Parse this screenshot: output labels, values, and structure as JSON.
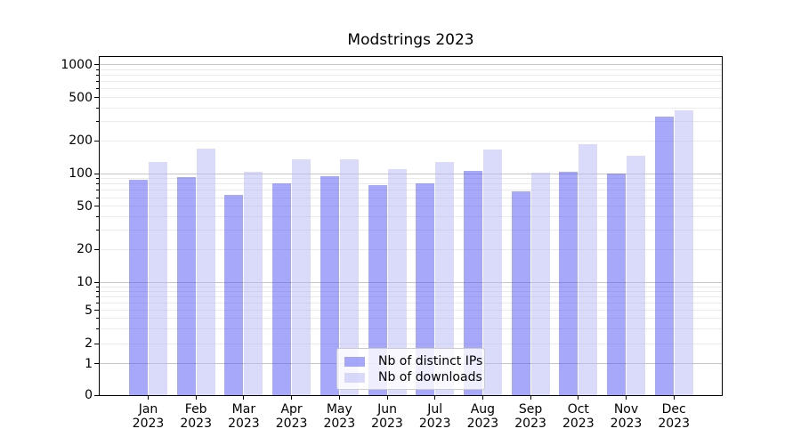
{
  "chart": {
    "background": "#ffffff",
    "spine_color": "#000000",
    "major_grid_color": "#c6c6c6",
    "minor_grid_color": "#ebebeb",
    "legend": {
      "background": "rgba(255,255,255,0.8)",
      "border_color": "#cccccc"
    }
  },
  "chart_data": {
    "type": "bar",
    "title": "Modstrings 2023",
    "categories": [
      "Jan 2023",
      "Feb 2023",
      "Mar 2023",
      "Apr 2023",
      "May 2023",
      "Jun 2023",
      "Jul 2023",
      "Aug 2023",
      "Sep 2023",
      "Oct 2023",
      "Nov 2023",
      "Dec 2023"
    ],
    "series": [
      {
        "name": "Nb of distinct IPs",
        "key": "ips",
        "color": "#5151f5",
        "alpha": 0.5,
        "fill": "rgba(81,81,245,0.5)",
        "values": [
          88,
          93,
          64,
          81,
          95,
          79,
          82,
          105,
          68,
          103,
          100,
          333
        ]
      },
      {
        "name": "Nb of downloads",
        "key": "downloads",
        "color": "#b5b5f5",
        "alpha": 0.5,
        "fill": "rgba(181,181,245,0.5)",
        "values": [
          127,
          168,
          103,
          134,
          135,
          110,
          128,
          165,
          102,
          185,
          145,
          380
        ]
      }
    ],
    "xlabel": "",
    "ylabel": "",
    "yscale": "symlog",
    "y_ticks": [
      0,
      1,
      2,
      5,
      10,
      20,
      50,
      100,
      200,
      500,
      1000
    ],
    "ylim": [
      0,
      1180
    ],
    "grid": "horizontal major+minor",
    "legend_position": "lower center"
  }
}
